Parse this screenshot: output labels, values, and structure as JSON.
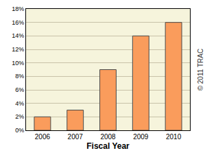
{
  "chart_data": {
    "type": "bar",
    "x_label": "Fiscal Year",
    "categories": [
      "2006",
      "2007",
      "2008",
      "2009",
      "2010"
    ],
    "values": [
      2,
      3,
      9,
      14,
      16
    ],
    "color": "#fa9c5c",
    "ylim": [
      0,
      18
    ],
    "yticks": [
      {
        "value": 0,
        "label": "0%"
      },
      {
        "value": 2,
        "label": "2%"
      },
      {
        "value": 4,
        "label": "4%"
      },
      {
        "value": 6,
        "label": "6%"
      },
      {
        "value": 8,
        "label": "8%"
      },
      {
        "value": 10,
        "label": "10%"
      },
      {
        "value": 12,
        "label": "12%"
      },
      {
        "value": 14,
        "label": "14%"
      },
      {
        "value": 16,
        "label": "16%"
      },
      {
        "value": 18,
        "label": "18%"
      }
    ],
    "grid": true,
    "annotations": [
      "© 2011 TRAC"
    ]
  }
}
